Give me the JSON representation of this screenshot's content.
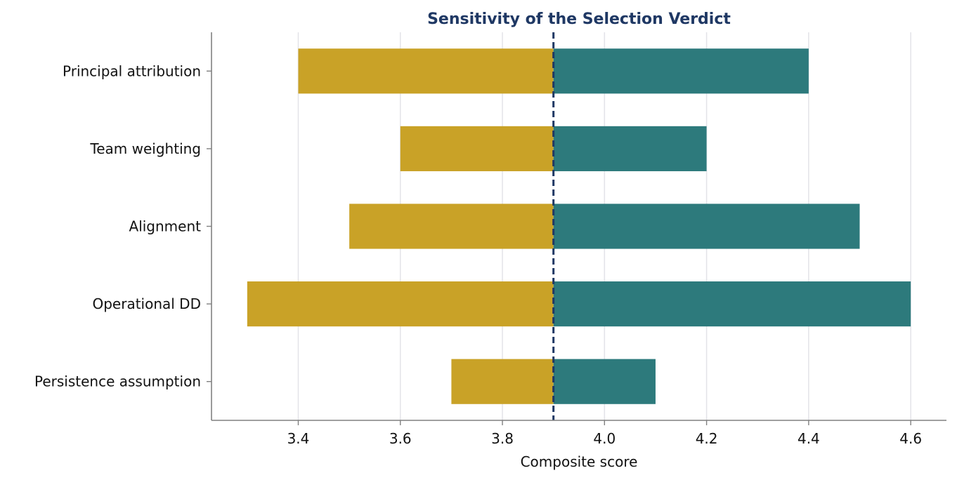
{
  "chart_data": {
    "type": "bar",
    "orientation": "horizontal",
    "style": "tornado",
    "title": "Sensitivity of the Selection Verdict",
    "xlabel": "Composite score",
    "ylabel": "",
    "baseline": 3.9,
    "xlim": [
      3.23,
      4.67
    ],
    "xticks": [
      3.4,
      3.6,
      3.8,
      4.0,
      4.2,
      4.4,
      4.6
    ],
    "xtick_labels": [
      "3.4",
      "3.6",
      "3.8",
      "4.0",
      "4.2",
      "4.4",
      "4.6"
    ],
    "grid": "vertical",
    "legend": "none",
    "categories": [
      "Principal attribution",
      "Team weighting",
      "Alignment",
      "Operational DD",
      "Persistence assumption"
    ],
    "series": [
      {
        "values": [
          3.4,
          3.6,
          3.5,
          3.3,
          3.7
        ],
        "color": "#c9a227"
      },
      {
        "values": [
          4.4,
          4.2,
          4.5,
          4.6,
          4.1
        ],
        "color": "#2d7a7c"
      }
    ],
    "baseline_color": "#1f3864"
  }
}
